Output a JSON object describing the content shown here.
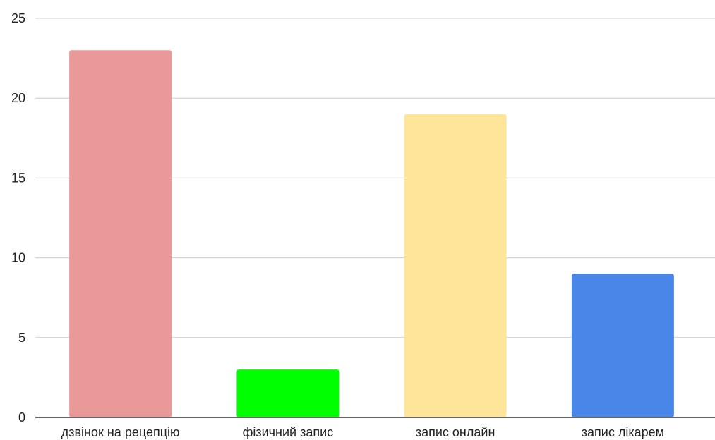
{
  "chart_data": {
    "type": "bar",
    "title": "",
    "xlabel": "",
    "ylabel": "",
    "categories": [
      "дзвінок на рецепцію",
      "фізичний запис",
      "запис онлайн",
      "запис лікарем"
    ],
    "values": [
      23,
      3,
      19,
      9
    ],
    "colors": [
      "#ea9999",
      "#00ff00",
      "#ffe599",
      "#4a86e8"
    ],
    "ylim": [
      0,
      25
    ],
    "yticks": [
      0,
      5,
      10,
      15,
      20,
      25
    ],
    "grid": true,
    "legend": "none"
  }
}
